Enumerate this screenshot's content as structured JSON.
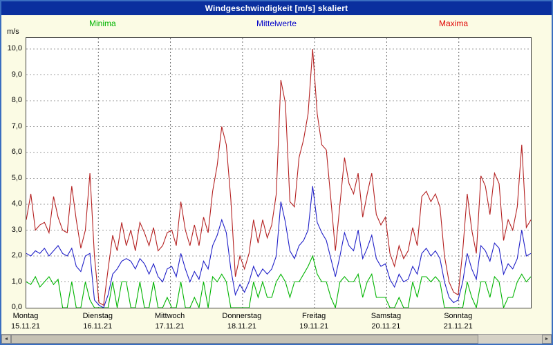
{
  "window": {
    "title": "Windgeschwindigkeit [m/s] skaliert"
  },
  "legend": [
    {
      "label": "Minima",
      "color": "#00b400"
    },
    {
      "label": "Mittelwerte",
      "color": "#0000c8"
    },
    {
      "label": "Maxima",
      "color": "#e00000"
    }
  ],
  "axes": {
    "unit": "m/s",
    "y_ticks": [
      "0,0",
      "1,0",
      "2,0",
      "3,0",
      "4,0",
      "5,0",
      "6,0",
      "7,0",
      "8,0",
      "9,0",
      "10,0"
    ],
    "days": [
      {
        "name": "Montag",
        "date": "15.11.21"
      },
      {
        "name": "Dienstag",
        "date": "16.11.21"
      },
      {
        "name": "Mittwoch",
        "date": "17.11.21"
      },
      {
        "name": "Donnerstag",
        "date": "18.11.21"
      },
      {
        "name": "Freitag",
        "date": "19.11.21"
      },
      {
        "name": "Samstag",
        "date": "20.11.21"
      },
      {
        "name": "Sonntag",
        "date": "21.11.21"
      }
    ]
  },
  "scrollbar": {
    "left_arrow": "◄",
    "right_arrow": "►"
  },
  "chart_data": {
    "type": "line",
    "title": "Windgeschwindigkeit [m/s] skaliert",
    "xlabel": "",
    "ylabel": "m/s",
    "ylim": [
      0,
      10
    ],
    "grid": true,
    "legend_position": "top",
    "x_days": [
      "15.11.21",
      "16.11.21",
      "17.11.21",
      "18.11.21",
      "19.11.21",
      "20.11.21",
      "21.11.21"
    ],
    "points_per_day": 16,
    "series": [
      {
        "name": "Minima",
        "color": "#00b400",
        "values": [
          1.0,
          0.9,
          1.2,
          0.8,
          1.0,
          1.2,
          0.9,
          1.1,
          0.0,
          0.0,
          1.0,
          0.0,
          0.0,
          1.0,
          0.3,
          0.0,
          0.0,
          0.0,
          0.0,
          1.0,
          0.0,
          1.0,
          1.0,
          0.0,
          0.0,
          1.0,
          0.0,
          0.0,
          1.0,
          0.0,
          0.0,
          0.4,
          0.0,
          0.0,
          1.0,
          0.0,
          0.0,
          0.4,
          0.0,
          1.0,
          0.0,
          1.2,
          1.0,
          1.3,
          1.0,
          0.0,
          0.0,
          0.0,
          0.0,
          0.0,
          1.0,
          0.4,
          1.0,
          0.4,
          0.4,
          1.0,
          1.3,
          1.0,
          0.4,
          1.0,
          1.0,
          1.3,
          1.6,
          2.0,
          1.3,
          1.0,
          1.0,
          0.4,
          0.0,
          1.0,
          1.2,
          1.0,
          1.0,
          1.3,
          0.4,
          1.0,
          1.3,
          0.4,
          0.4,
          0.4,
          0.0,
          0.0,
          0.4,
          0.0,
          0.0,
          1.0,
          0.4,
          1.2,
          1.2,
          1.0,
          1.2,
          1.0,
          0.0,
          0.0,
          0.0,
          0.0,
          0.0,
          1.0,
          0.4,
          0.0,
          1.0,
          1.0,
          0.4,
          1.2,
          1.0,
          0.0,
          0.4,
          0.4,
          1.0,
          1.3,
          1.0,
          1.2
        ]
      },
      {
        "name": "Mittelwerte",
        "color": "#2020c8",
        "values": [
          2.1,
          2.0,
          2.2,
          2.1,
          2.3,
          2.0,
          2.2,
          2.4,
          2.1,
          2.0,
          2.3,
          1.6,
          1.4,
          2.0,
          2.1,
          0.3,
          0.1,
          0.0,
          0.5,
          1.3,
          1.5,
          1.8,
          1.9,
          1.8,
          1.5,
          1.9,
          1.7,
          1.3,
          1.7,
          1.2,
          1.0,
          1.5,
          1.6,
          1.2,
          2.1,
          1.5,
          1.0,
          1.4,
          1.1,
          1.8,
          1.5,
          2.4,
          2.8,
          3.4,
          2.9,
          1.5,
          0.5,
          0.9,
          0.6,
          1.0,
          1.6,
          1.2,
          1.5,
          1.3,
          1.5,
          2.0,
          4.1,
          3.3,
          2.2,
          1.9,
          2.4,
          2.6,
          3.0,
          4.7,
          3.3,
          2.9,
          2.6,
          1.9,
          1.2,
          2.0,
          2.9,
          2.4,
          2.2,
          3.0,
          1.9,
          2.3,
          2.8,
          1.9,
          1.6,
          1.7,
          1.1,
          0.8,
          1.3,
          1.0,
          1.1,
          1.6,
          1.3,
          2.1,
          2.3,
          2.0,
          2.2,
          1.9,
          1.0,
          0.4,
          0.2,
          0.3,
          1.0,
          2.1,
          1.5,
          1.1,
          2.4,
          2.2,
          1.8,
          2.5,
          2.3,
          1.3,
          1.7,
          1.5,
          1.9,
          3.0,
          2.0,
          2.1
        ]
      },
      {
        "name": "Maxima",
        "color": "#b42020",
        "values": [
          3.4,
          4.4,
          3.0,
          3.2,
          3.3,
          2.9,
          4.3,
          3.5,
          3.0,
          2.9,
          4.7,
          3.4,
          2.3,
          3.0,
          5.2,
          2.0,
          0.2,
          0.1,
          1.5,
          2.8,
          2.2,
          3.3,
          2.4,
          3.0,
          2.2,
          3.3,
          2.9,
          2.4,
          3.1,
          2.2,
          2.4,
          2.9,
          3.0,
          2.4,
          4.1,
          3.0,
          2.4,
          3.2,
          2.4,
          3.5,
          2.9,
          4.5,
          5.5,
          7.0,
          6.3,
          4.2,
          1.2,
          2.0,
          1.5,
          2.1,
          3.4,
          2.5,
          3.4,
          2.7,
          3.2,
          4.4,
          8.8,
          7.9,
          4.1,
          3.9,
          5.8,
          6.5,
          7.5,
          10.0,
          7.5,
          6.3,
          6.1,
          4.2,
          2.2,
          4.0,
          5.8,
          4.8,
          4.4,
          5.2,
          3.5,
          4.4,
          5.2,
          3.6,
          3.2,
          3.5,
          2.1,
          1.6,
          2.4,
          1.9,
          2.2,
          3.1,
          2.4,
          4.3,
          4.5,
          4.1,
          4.4,
          3.9,
          2.0,
          1.0,
          0.6,
          0.5,
          2.2,
          4.4,
          3.0,
          2.1,
          5.1,
          4.7,
          3.6,
          5.2,
          4.8,
          2.6,
          3.4,
          3.0,
          3.9,
          6.3,
          3.1,
          3.4
        ]
      }
    ]
  }
}
